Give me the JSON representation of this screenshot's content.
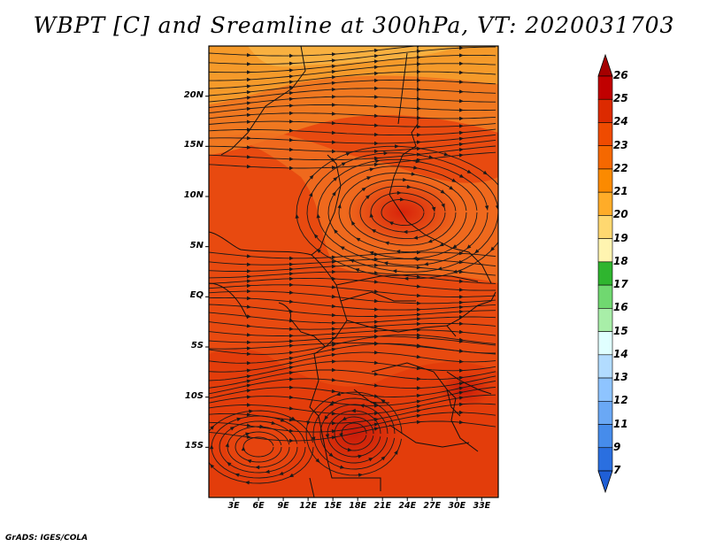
{
  "title": "WBPT [C] and Sreamline at 300hPa, VT: 2020031703",
  "credit": "GrADS: IGES/COLA",
  "map": {
    "lon_range": [
      0,
      35
    ],
    "lat_range": [
      -20,
      25
    ],
    "lat_ticks": [
      {
        "value": 20,
        "label": "20N"
      },
      {
        "value": 15,
        "label": "15N"
      },
      {
        "value": 10,
        "label": "10N"
      },
      {
        "value": 5,
        "label": "5N"
      },
      {
        "value": 0,
        "label": "EQ"
      },
      {
        "value": -5,
        "label": "5S"
      },
      {
        "value": -10,
        "label": "10S"
      },
      {
        "value": -15,
        "label": "15S"
      }
    ],
    "lon_ticks": [
      {
        "value": 3,
        "label": "3E"
      },
      {
        "value": 6,
        "label": "6E"
      },
      {
        "value": 9,
        "label": "9E"
      },
      {
        "value": 12,
        "label": "12E"
      },
      {
        "value": 15,
        "label": "15E"
      },
      {
        "value": 18,
        "label": "18E"
      },
      {
        "value": 21,
        "label": "21E"
      },
      {
        "value": 24,
        "label": "24E"
      },
      {
        "value": 27,
        "label": "27E"
      },
      {
        "value": 30,
        "label": "30E"
      },
      {
        "value": 33,
        "label": "33E"
      }
    ]
  },
  "colorbar": {
    "levels": [
      {
        "label": "26",
        "color": "#a50000"
      },
      {
        "label": "25",
        "color": "#c00000"
      },
      {
        "label": "24",
        "color": "#dc2a00"
      },
      {
        "label": "23",
        "color": "#ef4b00"
      },
      {
        "label": "22",
        "color": "#f56800"
      },
      {
        "label": "21",
        "color": "#fb8a00"
      },
      {
        "label": "20",
        "color": "#ffac28"
      },
      {
        "label": "19",
        "color": "#ffd870"
      },
      {
        "label": "18",
        "color": "#fff4b0"
      },
      {
        "label": "17",
        "color": "#2fb52f"
      },
      {
        "label": "16",
        "color": "#70d870"
      },
      {
        "label": "15",
        "color": "#a8eea8"
      },
      {
        "label": "14",
        "color": "#e0ffff"
      },
      {
        "label": "13",
        "color": "#b2dcff"
      },
      {
        "label": "12",
        "color": "#8ec4ff"
      },
      {
        "label": "11",
        "color": "#6aa8f5"
      },
      {
        "label": "9",
        "color": "#468ceb"
      },
      {
        "label": "7",
        "color": "#2a6fe0"
      }
    ],
    "min_arrow_color": "#1f5fd6"
  }
}
